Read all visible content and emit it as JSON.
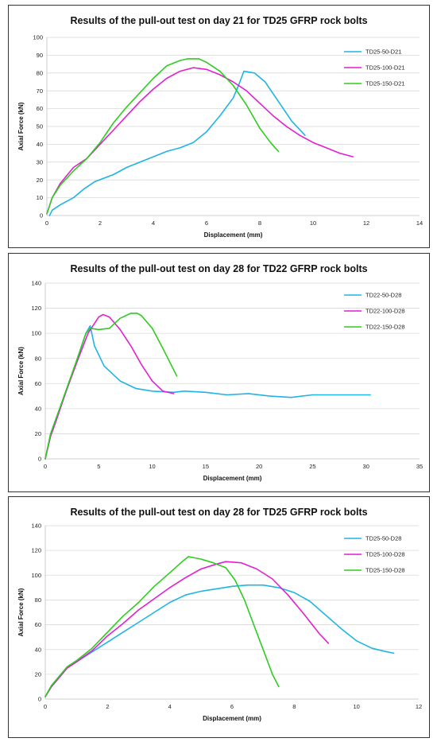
{
  "chart_data": [
    {
      "type": "line",
      "title": "Results of the pull-out test on day 21 for TD25 GFRP rock bolts",
      "xlabel": "Displacement (mm)",
      "ylabel": "Axial Force (kN)",
      "xlim": [
        0,
        14
      ],
      "ylim": [
        0,
        100
      ],
      "x_ticks": [
        0,
        2,
        4,
        6,
        8,
        10,
        12,
        14
      ],
      "y_ticks": [
        0,
        10,
        20,
        30,
        40,
        50,
        60,
        70,
        80,
        90,
        100
      ],
      "grid": true,
      "legend_position": "top-right",
      "series": [
        {
          "name": "TD25-50-D21",
          "color": "#1fb4e6",
          "points": [
            [
              0.1,
              0
            ],
            [
              0.2,
              3
            ],
            [
              0.5,
              6
            ],
            [
              1.0,
              10
            ],
            [
              1.4,
              15
            ],
            [
              1.8,
              19
            ],
            [
              2.5,
              23
            ],
            [
              3.0,
              27
            ],
            [
              3.5,
              30
            ],
            [
              4.0,
              33
            ],
            [
              4.5,
              36
            ],
            [
              5.0,
              38
            ],
            [
              5.5,
              41
            ],
            [
              6.0,
              47
            ],
            [
              6.5,
              56
            ],
            [
              7.0,
              66
            ],
            [
              7.2,
              73
            ],
            [
              7.4,
              81
            ],
            [
              7.8,
              80
            ],
            [
              8.2,
              75
            ],
            [
              8.7,
              64
            ],
            [
              9.2,
              53
            ],
            [
              9.7,
              45
            ]
          ]
        },
        {
          "name": "TD25-100-D21",
          "color": "#e21fd2",
          "points": [
            [
              0,
              1
            ],
            [
              0.2,
              10
            ],
            [
              0.5,
              18
            ],
            [
              1.0,
              27
            ],
            [
              1.5,
              32
            ],
            [
              2.0,
              40
            ],
            [
              2.5,
              48
            ],
            [
              3.0,
              56
            ],
            [
              3.5,
              64
            ],
            [
              4.0,
              71
            ],
            [
              4.5,
              77
            ],
            [
              5.0,
              81
            ],
            [
              5.5,
              83
            ],
            [
              6.0,
              82
            ],
            [
              6.5,
              79
            ],
            [
              7.0,
              75
            ],
            [
              7.5,
              70
            ],
            [
              8.0,
              63
            ],
            [
              8.5,
              56
            ],
            [
              9.0,
              50
            ],
            [
              9.5,
              45
            ],
            [
              10.0,
              41
            ],
            [
              10.5,
              38
            ],
            [
              11.0,
              35
            ],
            [
              11.5,
              33
            ]
          ]
        },
        {
          "name": "TD25-150-D21",
          "color": "#2ecc1f",
          "points": [
            [
              0,
              1
            ],
            [
              0.2,
              10
            ],
            [
              0.5,
              17
            ],
            [
              1.0,
              25
            ],
            [
              1.5,
              32
            ],
            [
              2.0,
              41
            ],
            [
              2.5,
              52
            ],
            [
              3.0,
              61
            ],
            [
              3.5,
              69
            ],
            [
              4.0,
              77
            ],
            [
              4.5,
              84
            ],
            [
              5.0,
              87
            ],
            [
              5.3,
              88
            ],
            [
              5.7,
              88
            ],
            [
              6.0,
              86
            ],
            [
              6.5,
              81
            ],
            [
              7.0,
              73
            ],
            [
              7.5,
              62
            ],
            [
              8.0,
              49
            ],
            [
              8.4,
              41
            ],
            [
              8.7,
              36
            ]
          ]
        }
      ]
    },
    {
      "type": "line",
      "title": "Results of the pull-out test on day 28 for TD22 GFRP rock bolts",
      "xlabel": "Displacement (mm)",
      "ylabel": "Axial Force (kN)",
      "xlim": [
        0,
        35
      ],
      "ylim": [
        0,
        140
      ],
      "x_ticks": [
        0,
        5,
        10,
        15,
        20,
        25,
        30,
        35
      ],
      "y_ticks": [
        0,
        20,
        40,
        60,
        80,
        100,
        120,
        140
      ],
      "grid": true,
      "legend_position": "top-right",
      "series": [
        {
          "name": "TD22-50-D28",
          "color": "#1fb4e6",
          "points": [
            [
              0,
              0
            ],
            [
              0.5,
              20
            ],
            [
              1.0,
              32
            ],
            [
              2.0,
              55
            ],
            [
              3.0,
              80
            ],
            [
              3.8,
              100
            ],
            [
              4.2,
              106
            ],
            [
              4.6,
              90
            ],
            [
              5.5,
              74
            ],
            [
              7.0,
              62
            ],
            [
              8.5,
              56
            ],
            [
              10.0,
              54
            ],
            [
              12.0,
              53
            ],
            [
              13.0,
              54
            ],
            [
              15.0,
              53
            ],
            [
              17.0,
              51
            ],
            [
              19.0,
              52
            ],
            [
              21.0,
              50
            ],
            [
              23.0,
              49
            ],
            [
              25.0,
              51
            ],
            [
              27.0,
              51
            ],
            [
              29.0,
              51
            ],
            [
              30.4,
              51
            ]
          ]
        },
        {
          "name": "TD22-100-D28",
          "color": "#e21fd2",
          "points": [
            [
              0,
              0
            ],
            [
              0.5,
              18
            ],
            [
              1.0,
              30
            ],
            [
              2.0,
              55
            ],
            [
              3.0,
              78
            ],
            [
              4.0,
              100
            ],
            [
              5.0,
              113
            ],
            [
              5.4,
              115
            ],
            [
              6.0,
              113
            ],
            [
              7.0,
              103
            ],
            [
              8.0,
              90
            ],
            [
              9.0,
              75
            ],
            [
              10.0,
              62
            ],
            [
              11.0,
              54
            ],
            [
              12.0,
              52
            ]
          ]
        },
        {
          "name": "TD22-150-D28",
          "color": "#2ecc1f",
          "points": [
            [
              0,
              0
            ],
            [
              0.5,
              20
            ],
            [
              1.0,
              32
            ],
            [
              2.0,
              56
            ],
            [
              3.0,
              80
            ],
            [
              3.8,
              100
            ],
            [
              4.2,
              104
            ],
            [
              5.0,
              103
            ],
            [
              6.0,
              104
            ],
            [
              7.0,
              112
            ],
            [
              8.0,
              116
            ],
            [
              8.6,
              116
            ],
            [
              9.0,
              114
            ],
            [
              10.0,
              104
            ],
            [
              11.0,
              88
            ],
            [
              12.3,
              66
            ]
          ]
        }
      ]
    },
    {
      "type": "line",
      "title": "Results of the pull-out test on day 28 for TD25 GFRP rock bolts",
      "xlabel": "Displacement (mm)",
      "ylabel": "Axial Force (kN)",
      "xlim": [
        0,
        12
      ],
      "ylim": [
        0,
        140
      ],
      "x_ticks": [
        0,
        2,
        4,
        6,
        8,
        10,
        12
      ],
      "y_ticks": [
        0,
        20,
        40,
        60,
        80,
        100,
        120,
        140
      ],
      "grid": true,
      "legend_position": "top-right",
      "series": [
        {
          "name": "TD25-50-D28",
          "color": "#1fb4e6",
          "points": [
            [
              0,
              2
            ],
            [
              0.2,
              10
            ],
            [
              0.4,
              16
            ],
            [
              0.7,
              25
            ],
            [
              1.0,
              30
            ],
            [
              1.5,
              38
            ],
            [
              2.0,
              46
            ],
            [
              2.5,
              54
            ],
            [
              3.0,
              62
            ],
            [
              3.5,
              70
            ],
            [
              4.0,
              78
            ],
            [
              4.5,
              84
            ],
            [
              5.0,
              87
            ],
            [
              5.5,
              89
            ],
            [
              6.0,
              91
            ],
            [
              6.5,
              92
            ],
            [
              7.0,
              92
            ],
            [
              7.5,
              90
            ],
            [
              8.0,
              86
            ],
            [
              8.5,
              79
            ],
            [
              9.0,
              68
            ],
            [
              9.5,
              57
            ],
            [
              10.0,
              47
            ],
            [
              10.5,
              41
            ],
            [
              11.0,
              38
            ],
            [
              11.2,
              37
            ]
          ]
        },
        {
          "name": "TD25-100-D28",
          "color": "#e21fd2",
          "points": [
            [
              0,
              2
            ],
            [
              0.2,
              10
            ],
            [
              0.4,
              16
            ],
            [
              0.7,
              25
            ],
            [
              1.0,
              30
            ],
            [
              1.5,
              39
            ],
            [
              2.0,
              51
            ],
            [
              2.5,
              61
            ],
            [
              3.0,
              72
            ],
            [
              3.5,
              81
            ],
            [
              4.0,
              90
            ],
            [
              4.5,
              98
            ],
            [
              5.0,
              105
            ],
            [
              5.5,
              109
            ],
            [
              5.8,
              111
            ],
            [
              6.3,
              110
            ],
            [
              6.8,
              105
            ],
            [
              7.3,
              97
            ],
            [
              7.8,
              84
            ],
            [
              8.3,
              69
            ],
            [
              8.8,
              53
            ],
            [
              9.1,
              45
            ]
          ]
        },
        {
          "name": "TD25-150-D28",
          "color": "#2ecc1f",
          "points": [
            [
              0,
              2
            ],
            [
              0.2,
              11
            ],
            [
              0.4,
              17
            ],
            [
              0.7,
              26
            ],
            [
              1.0,
              31
            ],
            [
              1.5,
              41
            ],
            [
              2.0,
              54
            ],
            [
              2.5,
              67
            ],
            [
              3.0,
              78
            ],
            [
              3.5,
              91
            ],
            [
              4.0,
              102
            ],
            [
              4.4,
              111
            ],
            [
              4.6,
              115
            ],
            [
              5.0,
              113
            ],
            [
              5.4,
              110
            ],
            [
              5.8,
              106
            ],
            [
              6.1,
              96
            ],
            [
              6.4,
              80
            ],
            [
              6.7,
              60
            ],
            [
              7.0,
              40
            ],
            [
              7.3,
              20
            ],
            [
              7.5,
              10
            ]
          ]
        }
      ]
    }
  ]
}
